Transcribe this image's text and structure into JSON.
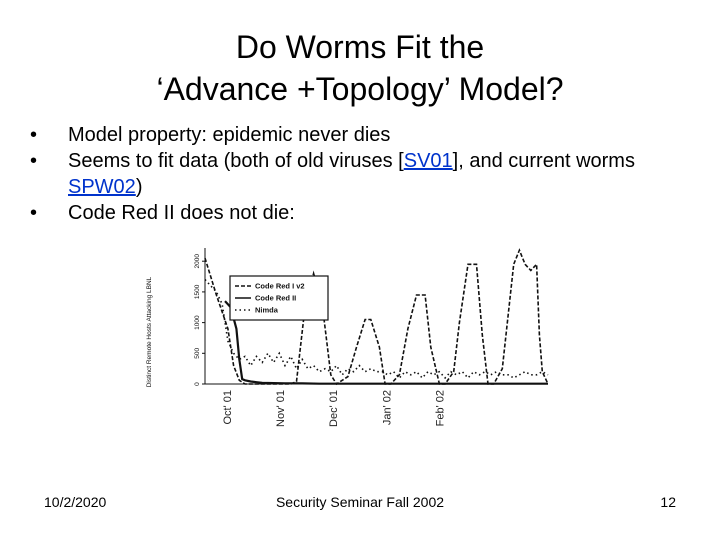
{
  "slide": {
    "title_line1": "Do Worms Fit the",
    "title_line2": "‘Advance +Topology’ Model?",
    "bullets": {
      "b1": "Model property: epidemic never dies",
      "b2_pre": "Seems to fit data (both of old viruses [",
      "b2_link1": "SV01",
      "b2_mid": "],  and current worms ",
      "b2_link2": "SPW02",
      "b2_post": ")",
      "b3": "Code Red II does not die:"
    },
    "footer": {
      "date": "10/2/2020",
      "center": "Security Seminar Fall 2002",
      "page": "12"
    }
  },
  "chart_data": {
    "type": "line",
    "ylabel": "Distinct Remote Hosts Attacking LBNL",
    "yticks": [
      "0",
      "500",
      "1000",
      "1500",
      "2000"
    ],
    "ylim": [
      0,
      2150
    ],
    "xticks": [
      "Oct' 01",
      "Nov' 01",
      "Dec' 01",
      "Jan' 02",
      "Feb' 02"
    ],
    "legend_position": "top-left",
    "colors": {
      "line": "#111111"
    },
    "series": [
      {
        "name": "Code Red I v2",
        "style": "dashed",
        "values": [
          [
            0,
            2050
          ],
          [
            4,
            1450
          ],
          [
            8,
            900
          ],
          [
            10,
            300
          ],
          [
            12,
            60
          ],
          [
            14,
            0
          ],
          [
            30,
            0
          ],
          [
            32,
            40
          ],
          [
            35,
            1250
          ],
          [
            38,
            1800
          ],
          [
            41,
            1300
          ],
          [
            44,
            150
          ],
          [
            46,
            0
          ],
          [
            50,
            120
          ],
          [
            53,
            600
          ],
          [
            56,
            1050
          ],
          [
            58,
            1050
          ],
          [
            61,
            600
          ],
          [
            63,
            0
          ],
          [
            65,
            0
          ],
          [
            68,
            150
          ],
          [
            71,
            900
          ],
          [
            74,
            1450
          ],
          [
            77,
            1450
          ],
          [
            79,
            600
          ],
          [
            82,
            0
          ],
          [
            84,
            0
          ],
          [
            87,
            200
          ],
          [
            89,
            1000
          ],
          [
            92,
            1950
          ],
          [
            95,
            1950
          ],
          [
            97,
            800
          ],
          [
            99,
            0
          ],
          [
            101,
            0
          ],
          [
            104,
            250
          ],
          [
            106,
            1100
          ],
          [
            108,
            1950
          ],
          [
            110,
            2180
          ],
          [
            112,
            1950
          ],
          [
            114,
            1850
          ],
          [
            116,
            1950
          ],
          [
            117,
            800
          ],
          [
            118,
            200
          ],
          [
            120,
            0
          ]
        ]
      },
      {
        "name": "Code Red II",
        "style": "solid",
        "values": [
          [
            7,
            1350
          ],
          [
            9,
            1250
          ],
          [
            11,
            900
          ],
          [
            12,
            400
          ],
          [
            13,
            80
          ],
          [
            14,
            60
          ],
          [
            16,
            40
          ],
          [
            18,
            30
          ],
          [
            20,
            20
          ],
          [
            24,
            15
          ],
          [
            28,
            10
          ],
          [
            34,
            10
          ],
          [
            40,
            5
          ],
          [
            50,
            5
          ],
          [
            60,
            5
          ],
          [
            80,
            5
          ],
          [
            100,
            5
          ],
          [
            120,
            5
          ]
        ]
      },
      {
        "name": "Nimda",
        "style": "dotted",
        "values": [
          [
            0,
            1700
          ],
          [
            2,
            1600
          ],
          [
            4,
            1500
          ],
          [
            6,
            1300
          ],
          [
            8,
            700
          ],
          [
            10,
            500
          ],
          [
            12,
            400
          ],
          [
            14,
            450
          ],
          [
            16,
            300
          ],
          [
            18,
            450
          ],
          [
            20,
            350
          ],
          [
            22,
            500
          ],
          [
            24,
            350
          ],
          [
            26,
            500
          ],
          [
            28,
            300
          ],
          [
            30,
            450
          ],
          [
            32,
            250
          ],
          [
            34,
            400
          ],
          [
            36,
            250
          ],
          [
            38,
            300
          ],
          [
            40,
            200
          ],
          [
            42,
            250
          ],
          [
            44,
            200
          ],
          [
            46,
            300
          ],
          [
            48,
            150
          ],
          [
            50,
            250
          ],
          [
            52,
            200
          ],
          [
            54,
            300
          ],
          [
            56,
            200
          ],
          [
            58,
            250
          ],
          [
            60,
            200
          ],
          [
            62,
            200
          ],
          [
            64,
            150
          ],
          [
            66,
            200
          ],
          [
            68,
            100
          ],
          [
            70,
            200
          ],
          [
            72,
            150
          ],
          [
            74,
            200
          ],
          [
            76,
            100
          ],
          [
            78,
            200
          ],
          [
            80,
            150
          ],
          [
            82,
            200
          ],
          [
            84,
            100
          ],
          [
            86,
            200
          ],
          [
            88,
            150
          ],
          [
            90,
            200
          ],
          [
            92,
            100
          ],
          [
            94,
            200
          ],
          [
            96,
            150
          ],
          [
            98,
            200
          ],
          [
            100,
            150
          ],
          [
            102,
            200
          ],
          [
            104,
            150
          ],
          [
            106,
            150
          ],
          [
            108,
            100
          ],
          [
            110,
            150
          ],
          [
            112,
            200
          ],
          [
            114,
            150
          ],
          [
            116,
            150
          ],
          [
            118,
            200
          ],
          [
            120,
            150
          ]
        ]
      }
    ]
  }
}
